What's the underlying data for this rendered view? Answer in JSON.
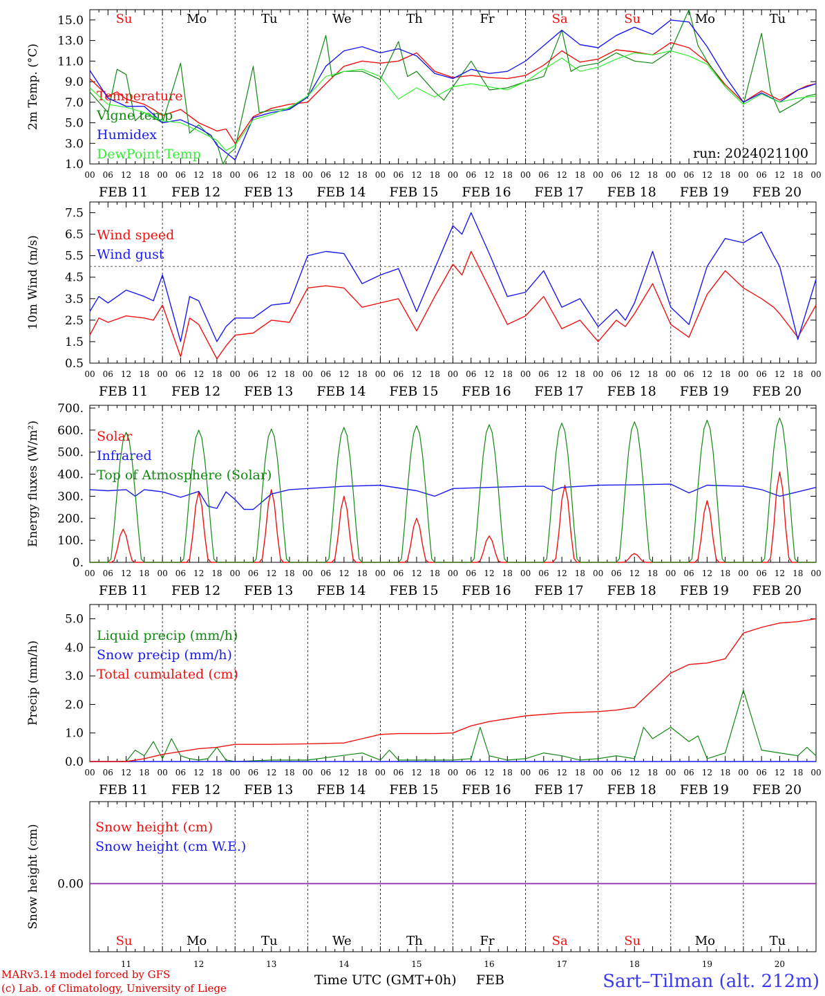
{
  "run_label": "run: 2024021100",
  "days": [
    {
      "label": "FEB 11",
      "dow": "Su",
      "num": "11",
      "weekend": true
    },
    {
      "label": "FEB 12",
      "dow": "Mo",
      "num": "12",
      "weekend": false
    },
    {
      "label": "FEB 13",
      "dow": "Tu",
      "num": "13",
      "weekend": false
    },
    {
      "label": "FEB 14",
      "dow": "We",
      "num": "14",
      "weekend": false
    },
    {
      "label": "FEB 15",
      "dow": "Th",
      "num": "15",
      "weekend": false
    },
    {
      "label": "FEB 16",
      "dow": "Fr",
      "num": "16",
      "weekend": false
    },
    {
      "label": "FEB 17",
      "dow": "Sa",
      "num": "17",
      "weekend": true
    },
    {
      "label": "FEB 18",
      "dow": "Su",
      "num": "18",
      "weekend": true
    },
    {
      "label": "FEB 19",
      "dow": "Mo",
      "num": "19",
      "weekend": false
    },
    {
      "label": "FEB 20",
      "dow": "Tu",
      "num": "20",
      "weekend": false
    }
  ],
  "hour_ticks": [
    "00",
    "06",
    "12",
    "18"
  ],
  "x_label": "Time UTC (GMT+0h)",
  "month_label": "FEB",
  "credit_line1": "MARv3.14 model forced by GFS",
  "credit_line2": "(c) Lab. of Climatology, University of Liege",
  "station": "Sart–Tilman (alt. 212m)",
  "colors": {
    "red": "#ee1111",
    "green": "#118811",
    "blue": "#1a1aee",
    "lightgreen": "#33ee33",
    "weekend": "#ee1111",
    "weekday": "#000000"
  },
  "chart_data": [
    {
      "type": "line",
      "ylabel": "2m Temp. (°C)",
      "ylim": [
        1.0,
        16.0
      ],
      "yticks": [
        "1.0",
        "3.0",
        "5.0",
        "7.0",
        "9.0",
        "11.0",
        "13.0",
        "15.0"
      ],
      "x_unit": "hours since 2024-02-11 00 UTC",
      "xlim": [
        0,
        240
      ],
      "grid": "dashed day separators",
      "legend": "upper-left",
      "series": [
        {
          "name": "Temperature",
          "color": "red",
          "x": [
            0,
            6,
            9,
            12,
            18,
            21,
            24,
            30,
            36,
            42,
            45,
            48,
            54,
            60,
            66,
            72,
            78,
            84,
            90,
            96,
            102,
            108,
            114,
            120,
            126,
            132,
            138,
            144,
            150,
            156,
            162,
            168,
            174,
            180,
            186,
            192,
            198,
            204,
            210,
            216,
            222,
            228,
            234,
            237,
            240
          ],
          "y": [
            9.3,
            7.6,
            8.0,
            7.3,
            6.8,
            6.3,
            5.7,
            6.3,
            5.0,
            4.2,
            4.4,
            3.0,
            5.6,
            6.4,
            6.8,
            7.0,
            8.8,
            10.5,
            11.0,
            10.8,
            11.0,
            11.8,
            10.0,
            9.4,
            9.6,
            9.4,
            9.3,
            9.6,
            10.6,
            12.0,
            10.9,
            11.2,
            12.1,
            11.9,
            11.6,
            12.8,
            12.3,
            10.9,
            8.7,
            7.0,
            8.1,
            7.2,
            8.2,
            8.6,
            8.8
          ]
        },
        {
          "name": "Vigne temp",
          "color": "green",
          "x": [
            0,
            6,
            9,
            12,
            15,
            18,
            21,
            24,
            30,
            33,
            36,
            42,
            44,
            46,
            48,
            54,
            56,
            60,
            66,
            72,
            78,
            80,
            84,
            90,
            96,
            102,
            105,
            108,
            114,
            117,
            120,
            126,
            132,
            138,
            144,
            150,
            156,
            159,
            162,
            168,
            174,
            180,
            186,
            192,
            198,
            201,
            204,
            210,
            216,
            222,
            225,
            228,
            234,
            237,
            240
          ],
          "y": [
            8.0,
            6.0,
            10.2,
            9.7,
            5.2,
            6.0,
            5.5,
            5.0,
            10.8,
            4.0,
            4.8,
            3.0,
            0.6,
            2.0,
            2.5,
            10.5,
            6.0,
            6.2,
            6.4,
            7.5,
            13.5,
            9.5,
            10.0,
            10.0,
            9.2,
            12.9,
            9.5,
            10.0,
            8.0,
            7.2,
            8.5,
            11.0,
            8.2,
            8.4,
            9.0,
            9.5,
            14.0,
            10.0,
            10.5,
            10.8,
            11.8,
            11.0,
            10.8,
            12.0,
            16.0,
            12.5,
            11.0,
            8.5,
            6.8,
            13.7,
            8.0,
            6.0,
            7.0,
            7.6,
            7.8
          ]
        },
        {
          "name": "Humidex",
          "color": "blue",
          "x": [
            0,
            6,
            12,
            18,
            24,
            30,
            36,
            40,
            42,
            48,
            54,
            60,
            66,
            72,
            78,
            84,
            90,
            96,
            102,
            108,
            114,
            120,
            126,
            132,
            138,
            144,
            150,
            156,
            162,
            168,
            174,
            180,
            186,
            192,
            198,
            204,
            210,
            216,
            222,
            228,
            234,
            240
          ],
          "y": [
            10.1,
            7.4,
            6.6,
            6.6,
            5.0,
            5.3,
            4.5,
            3.8,
            2.8,
            1.4,
            5.5,
            6.0,
            6.3,
            7.5,
            10.5,
            12.0,
            12.4,
            11.8,
            12.2,
            11.5,
            9.8,
            9.3,
            10.2,
            9.8,
            10.0,
            11.0,
            12.5,
            14.0,
            12.6,
            12.3,
            13.5,
            14.3,
            13.6,
            15.0,
            14.8,
            12.4,
            9.5,
            7.0,
            7.9,
            7.0,
            8.2,
            8.8
          ]
        },
        {
          "name": "DewPoint Temp",
          "color": "lightgreen",
          "x": [
            0,
            6,
            12,
            18,
            24,
            30,
            36,
            42,
            45,
            48,
            54,
            60,
            66,
            72,
            78,
            84,
            90,
            96,
            102,
            108,
            114,
            120,
            126,
            132,
            138,
            144,
            150,
            156,
            162,
            168,
            174,
            180,
            186,
            192,
            198,
            204,
            210,
            216,
            222,
            228,
            234,
            240
          ],
          "y": [
            8.4,
            6.8,
            6.5,
            6.0,
            5.2,
            5.0,
            4.2,
            3.3,
            2.3,
            2.8,
            5.3,
            5.8,
            6.5,
            7.6,
            9.5,
            10.0,
            10.2,
            9.5,
            7.3,
            8.4,
            7.5,
            8.5,
            8.8,
            8.5,
            8.2,
            9.0,
            10.2,
            11.3,
            10.0,
            10.4,
            11.2,
            11.8,
            11.6,
            12.0,
            11.5,
            10.7,
            8.5,
            6.8,
            7.8,
            7.0,
            7.4,
            7.6
          ]
        }
      ]
    },
    {
      "type": "line",
      "ylabel": "10m Wind (m/s)",
      "ylim": [
        0.5,
        8.0
      ],
      "yticks": [
        "0.5",
        "1.5",
        "2.5",
        "3.5",
        "4.5",
        "5.5",
        "6.5",
        "7.5"
      ],
      "reference_line": 5.0,
      "xlim": [
        0,
        240
      ],
      "legend": "upper-left",
      "series": [
        {
          "name": "Wind speed",
          "color": "red",
          "x": [
            0,
            3,
            6,
            12,
            18,
            21,
            24,
            30,
            33,
            36,
            42,
            45,
            48,
            54,
            60,
            66,
            72,
            78,
            84,
            90,
            96,
            102,
            108,
            114,
            120,
            123,
            126,
            132,
            138,
            144,
            150,
            156,
            162,
            168,
            174,
            177,
            180,
            186,
            192,
            198,
            204,
            210,
            216,
            222,
            226,
            228,
            234,
            240
          ],
          "y": [
            1.8,
            2.6,
            2.4,
            2.7,
            2.6,
            2.5,
            3.2,
            0.8,
            2.6,
            2.3,
            0.7,
            1.3,
            1.8,
            1.9,
            2.5,
            2.4,
            4.0,
            4.1,
            4.0,
            3.1,
            3.3,
            3.5,
            2.0,
            3.6,
            5.1,
            4.6,
            5.7,
            4.0,
            2.3,
            2.7,
            3.6,
            2.1,
            2.5,
            1.5,
            2.5,
            2.2,
            2.8,
            4.2,
            2.3,
            1.7,
            3.7,
            4.8,
            4.0,
            3.5,
            3.1,
            2.8,
            1.7,
            3.2
          ]
        },
        {
          "name": "Wind gust",
          "color": "blue",
          "x": [
            0,
            3,
            6,
            12,
            18,
            21,
            24,
            30,
            33,
            36,
            42,
            45,
            48,
            54,
            60,
            66,
            72,
            78,
            84,
            90,
            96,
            102,
            108,
            114,
            120,
            123,
            126,
            132,
            138,
            144,
            150,
            156,
            162,
            168,
            174,
            177,
            180,
            186,
            192,
            198,
            204,
            210,
            216,
            222,
            226,
            228,
            234,
            240
          ],
          "y": [
            2.9,
            3.6,
            3.3,
            3.9,
            3.6,
            3.4,
            4.6,
            1.5,
            3.6,
            3.4,
            1.5,
            2.2,
            2.6,
            2.6,
            3.2,
            3.3,
            5.5,
            5.7,
            5.6,
            4.2,
            4.6,
            4.9,
            2.9,
            4.9,
            6.9,
            6.5,
            7.5,
            5.6,
            3.6,
            3.8,
            4.8,
            3.1,
            3.5,
            2.2,
            3.0,
            2.5,
            3.3,
            5.7,
            3.1,
            2.3,
            5.0,
            6.3,
            6.1,
            6.6,
            5.5,
            5.0,
            1.6,
            4.4
          ]
        }
      ]
    },
    {
      "type": "line",
      "ylabel": "Energy fluxes (W/m²)",
      "ylim": [
        0,
        700
      ],
      "yticks": [
        "0.",
        "100.",
        "200.",
        "300.",
        "400.",
        "500.",
        "600.",
        "700."
      ],
      "xlim": [
        0,
        240
      ],
      "legend": "upper-left",
      "series": [
        {
          "name": "Solar",
          "color": "red",
          "daily_peak_hours": [
            11,
            12,
            12,
            12,
            12,
            12,
            13,
            12,
            12,
            12
          ],
          "daily_peaks": [
            150,
            320,
            330,
            300,
            200,
            120,
            350,
            40,
            280,
            410
          ]
        },
        {
          "name": "Infrared",
          "color": "blue",
          "x": [
            0,
            6,
            12,
            15,
            18,
            21,
            24,
            30,
            36,
            39,
            42,
            45,
            48,
            51,
            54,
            60,
            66,
            72,
            84,
            96,
            108,
            114,
            120,
            132,
            144,
            150,
            153,
            156,
            168,
            180,
            192,
            198,
            204,
            216,
            222,
            228,
            234,
            240
          ],
          "y": [
            330,
            325,
            330,
            300,
            330,
            325,
            320,
            295,
            322,
            255,
            245,
            320,
            285,
            240,
            240,
            310,
            330,
            335,
            345,
            350,
            325,
            300,
            335,
            340,
            345,
            345,
            325,
            340,
            350,
            352,
            355,
            315,
            350,
            345,
            330,
            300,
            320,
            340
          ]
        },
        {
          "name": "Top of Atmosphere (Solar)",
          "color": "green",
          "daily_peaks": [
            590,
            600,
            605,
            612,
            620,
            625,
            632,
            638,
            645,
            655
          ]
        }
      ]
    },
    {
      "type": "line",
      "ylabel": "Precip (mm/h)",
      "ylim": [
        0,
        5.5
      ],
      "yticks": [
        "0.0",
        "1.0",
        "2.0",
        "3.0",
        "4.0",
        "5.0"
      ],
      "xlim": [
        0,
        240
      ],
      "legend": "upper-left",
      "series": [
        {
          "name": "Liquid precip (mm/h)",
          "color": "green",
          "x": [
            0,
            12,
            15,
            18,
            21,
            24,
            27,
            30,
            33,
            36,
            39,
            42,
            45,
            48,
            60,
            72,
            90,
            96,
            99,
            102,
            108,
            114,
            120,
            126,
            129,
            132,
            138,
            144,
            150,
            156,
            162,
            168,
            174,
            180,
            183,
            186,
            192,
            198,
            201,
            204,
            210,
            216,
            222,
            228,
            234,
            237,
            240
          ],
          "y": [
            0,
            0,
            0.4,
            0.2,
            0.7,
            0.1,
            0.8,
            0.2,
            0.1,
            0.05,
            0.1,
            0.5,
            0.05,
            0,
            0.05,
            0.05,
            0.3,
            0.05,
            0.4,
            0.05,
            0.05,
            0.05,
            0.05,
            0.1,
            1.2,
            0.2,
            0.05,
            0.1,
            0.3,
            0.2,
            0.05,
            0.1,
            0.2,
            0.1,
            1.2,
            0.8,
            1.2,
            0.7,
            0.9,
            0.1,
            0.3,
            2.5,
            0.4,
            0.3,
            0.2,
            0.5,
            0.2
          ]
        },
        {
          "name": "Snow precip (mm/h)",
          "color": "blue",
          "x": [
            0,
            240
          ],
          "y": [
            0,
            0
          ]
        },
        {
          "name": "Total cumulated (cm)",
          "color": "red",
          "x": [
            0,
            12,
            18,
            24,
            30,
            36,
            42,
            48,
            60,
            72,
            84,
            90,
            96,
            102,
            108,
            114,
            120,
            126,
            132,
            144,
            156,
            168,
            174,
            180,
            186,
            192,
            198,
            204,
            210,
            216,
            222,
            228,
            234,
            240
          ],
          "y": [
            0,
            0,
            0.1,
            0.25,
            0.35,
            0.45,
            0.5,
            0.6,
            0.6,
            0.62,
            0.65,
            0.8,
            0.95,
            0.98,
            0.98,
            0.98,
            1.0,
            1.25,
            1.4,
            1.6,
            1.7,
            1.75,
            1.8,
            1.9,
            2.5,
            3.1,
            3.4,
            3.45,
            3.6,
            4.5,
            4.7,
            4.85,
            4.9,
            5.0
          ]
        }
      ]
    },
    {
      "type": "line",
      "ylabel": "Snow height (cm)",
      "yticks": [
        "0.00"
      ],
      "xlim": [
        0,
        240
      ],
      "legend": "upper-left",
      "series": [
        {
          "name": "Snow height (cm)",
          "color": "red",
          "x": [
            0,
            240
          ],
          "y": [
            0,
            0
          ]
        },
        {
          "name": "Snow height (cm W.E.)",
          "color": "blue",
          "x": [
            0,
            240
          ],
          "y": [
            0,
            0
          ]
        }
      ]
    }
  ]
}
